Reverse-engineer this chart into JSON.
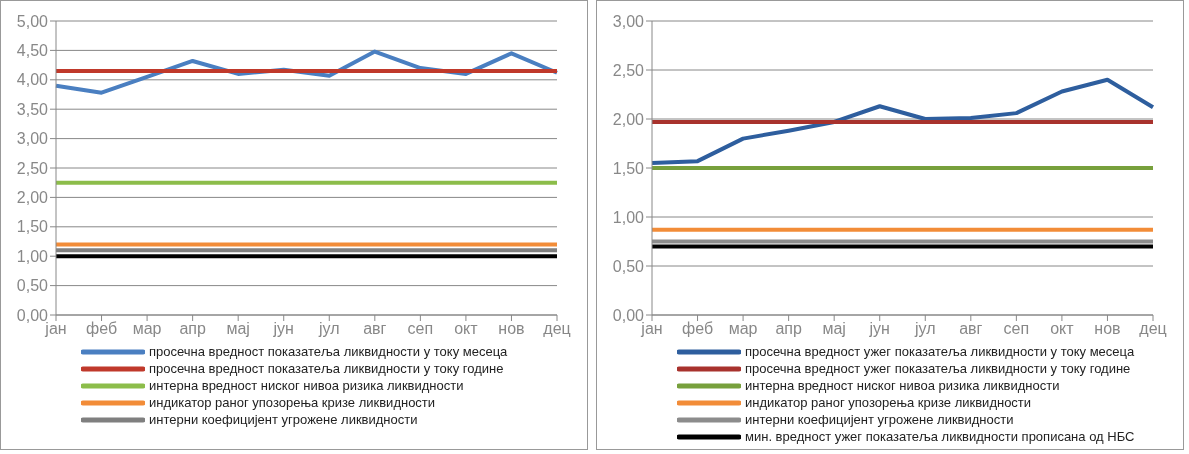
{
  "chart_data": [
    {
      "type": "line",
      "categories": [
        "јан",
        "феб",
        "мар",
        "апр",
        "мај",
        "јун",
        "јул",
        "авг",
        "сеп",
        "окт",
        "нов",
        "дец"
      ],
      "series": [
        {
          "name": "просечна вредност показатеља ликвидности у току месеца",
          "color": "#4a7fc1",
          "values": [
            3.9,
            3.78,
            4.05,
            4.32,
            4.1,
            4.17,
            4.07,
            4.48,
            4.2,
            4.1,
            4.45,
            4.12
          ]
        },
        {
          "name": "просечна вредност показатеља ликвидности у току године",
          "color": "#c0392b",
          "values": [
            4.15,
            4.15,
            4.15,
            4.15,
            4.15,
            4.15,
            4.15,
            4.15,
            4.15,
            4.15,
            4.15,
            4.15
          ]
        },
        {
          "name": "интерна вредност ниског нивоа ризика ликвидности",
          "color": "#8cbd4a",
          "values": [
            2.25,
            2.25,
            2.25,
            2.25,
            2.25,
            2.25,
            2.25,
            2.25,
            2.25,
            2.25,
            2.25,
            2.25
          ]
        },
        {
          "name": "индикатор раног упозорења кризе ликвидности",
          "color": "#f28c38",
          "values": [
            1.2,
            1.2,
            1.2,
            1.2,
            1.2,
            1.2,
            1.2,
            1.2,
            1.2,
            1.2,
            1.2,
            1.2
          ]
        },
        {
          "name": "интерни коефицијент угрожене ликвидности",
          "color": "#7f7f7f",
          "values": [
            1.1,
            1.1,
            1.1,
            1.1,
            1.1,
            1.1,
            1.1,
            1.1,
            1.1,
            1.1,
            1.1,
            1.1
          ]
        },
        {
          "color": "#000000",
          "values": [
            1.0,
            1.0,
            1.0,
            1.0,
            1.0,
            1.0,
            1.0,
            1.0,
            1.0,
            1.0,
            1.0,
            1.0
          ]
        }
      ],
      "ylim": [
        0,
        5
      ],
      "yticks": [
        {
          "value": 0,
          "label": "0,00"
        },
        {
          "value": 0.5,
          "label": "0,50"
        },
        {
          "value": 1,
          "label": "1,00"
        },
        {
          "value": 1.5,
          "label": "1,50"
        },
        {
          "value": 2,
          "label": "2,00"
        },
        {
          "value": 2.5,
          "label": "2,50"
        },
        {
          "value": 3,
          "label": "3,00"
        },
        {
          "value": 3.5,
          "label": "3,50"
        },
        {
          "value": 4,
          "label": "4,00"
        },
        {
          "value": 4.5,
          "label": "4,50"
        },
        {
          "value": 5,
          "label": "5,00"
        }
      ],
      "grid": "y",
      "legend": "bottom",
      "marker": "none"
    },
    {
      "type": "line",
      "categories": [
        "јан",
        "феб",
        "мар",
        "апр",
        "мај",
        "јун",
        "јул",
        "авг",
        "сеп",
        "окт",
        "нов",
        "дец"
      ],
      "series": [
        {
          "name": "просечна вредност ужег показатеља ликвидности у току месеца",
          "color": "#2e5e9e",
          "values": [
            1.55,
            1.57,
            1.8,
            1.88,
            1.97,
            2.13,
            2.0,
            2.01,
            2.06,
            2.28,
            2.4,
            2.12
          ]
        },
        {
          "name": "просечна вредност ужег показатеља ликвидности у току године",
          "color": "#a8322d",
          "values": [
            1.97,
            1.97,
            1.97,
            1.97,
            1.97,
            1.97,
            1.97,
            1.97,
            1.97,
            1.97,
            1.97,
            1.97
          ]
        },
        {
          "name": "интерна вредност ниског нивоа ризика ликвидности",
          "color": "#77a03c",
          "values": [
            1.5,
            1.5,
            1.5,
            1.5,
            1.5,
            1.5,
            1.5,
            1.5,
            1.5,
            1.5,
            1.5,
            1.5
          ]
        },
        {
          "name": "индикатор раног упозорења кризе ликвидности",
          "color": "#f28c38",
          "values": [
            0.87,
            0.87,
            0.87,
            0.87,
            0.87,
            0.87,
            0.87,
            0.87,
            0.87,
            0.87,
            0.87,
            0.87
          ]
        },
        {
          "name": "интерни коефицијент угрожене ликвидности",
          "color": "#8c8c8c",
          "values": [
            0.75,
            0.75,
            0.75,
            0.75,
            0.75,
            0.75,
            0.75,
            0.75,
            0.75,
            0.75,
            0.75,
            0.75
          ]
        },
        {
          "name": "мин. вредност ужег показатеља ликвидности прописана од НБС",
          "color": "#000000",
          "values": [
            0.7,
            0.7,
            0.7,
            0.7,
            0.7,
            0.7,
            0.7,
            0.7,
            0.7,
            0.7,
            0.7,
            0.7
          ]
        }
      ],
      "ylim": [
        0,
        3
      ],
      "yticks": [
        {
          "value": 0,
          "label": "0,00"
        },
        {
          "value": 0.5,
          "label": "0,50"
        },
        {
          "value": 1,
          "label": "1,00"
        },
        {
          "value": 1.5,
          "label": "1,50"
        },
        {
          "value": 2,
          "label": "2,00"
        },
        {
          "value": 2.5,
          "label": "2,50"
        },
        {
          "value": 3,
          "label": "3,00"
        }
      ],
      "grid": "y",
      "legend": "bottom",
      "marker": "none"
    }
  ]
}
